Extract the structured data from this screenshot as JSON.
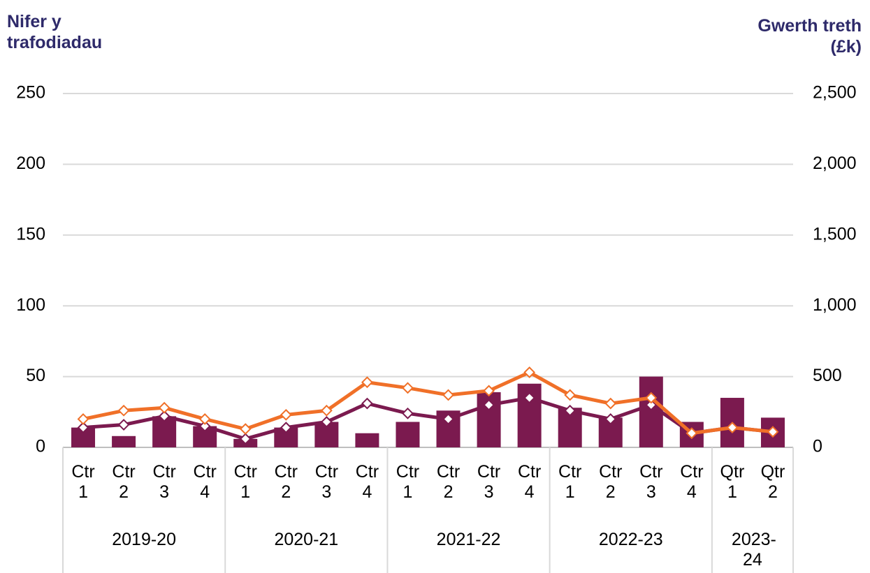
{
  "chart_data": {
    "type": "bar_line",
    "y_label": "Nifer y trafodiadau",
    "y2_label": "Gwerth treth (£k)",
    "groups": [
      {
        "label": "2019-20",
        "categories": [
          "Ctr 1",
          "Ctr 2",
          "Ctr 3",
          "Ctr 4"
        ]
      },
      {
        "label": "2020-21",
        "categories": [
          "Ctr 1",
          "Ctr 2",
          "Ctr 3",
          "Ctr 4"
        ]
      },
      {
        "label": "2021-22",
        "categories": [
          "Ctr 1",
          "Ctr 2",
          "Ctr 3",
          "Ctr 4"
        ]
      },
      {
        "label": "2022-23",
        "categories": [
          "Ctr 1",
          "Ctr 2",
          "Ctr 3",
          "Ctr 4"
        ]
      },
      {
        "label": "2023-24",
        "categories": [
          "Qtr 1",
          "Qtr 2"
        ]
      }
    ],
    "series": [
      {
        "type": "bar",
        "color": "#7b1a4f",
        "values": [
          14,
          8,
          22,
          15,
          6,
          14,
          18,
          10,
          18,
          26,
          39,
          45,
          28,
          21,
          50,
          18,
          35,
          21
        ]
      },
      {
        "type": "line",
        "axis": "y2",
        "color": "#7b1a4f",
        "values": [
          140,
          160,
          220,
          150,
          60,
          140,
          180,
          310,
          240,
          200,
          300,
          350,
          260,
          200,
          300,
          100,
          140,
          110
        ]
      },
      {
        "type": "line",
        "axis": "y2",
        "color": "#f07028",
        "values": [
          200,
          260,
          280,
          200,
          130,
          230,
          260,
          460,
          420,
          370,
          400,
          530,
          370,
          310,
          350,
          100,
          140,
          110
        ]
      }
    ],
    "ylim": [
      0,
      250
    ],
    "yticks": [
      0,
      50,
      100,
      150,
      200,
      250
    ],
    "y2lim": [
      0,
      2500
    ],
    "y2ticks": [
      0,
      500,
      {
        "value": 1000,
        "label": "1,000"
      },
      {
        "value": 1500,
        "label": "1,500"
      },
      {
        "value": 2000,
        "label": "2,000"
      },
      {
        "value": 2500,
        "label": "2,500"
      }
    ],
    "grid": true
  }
}
